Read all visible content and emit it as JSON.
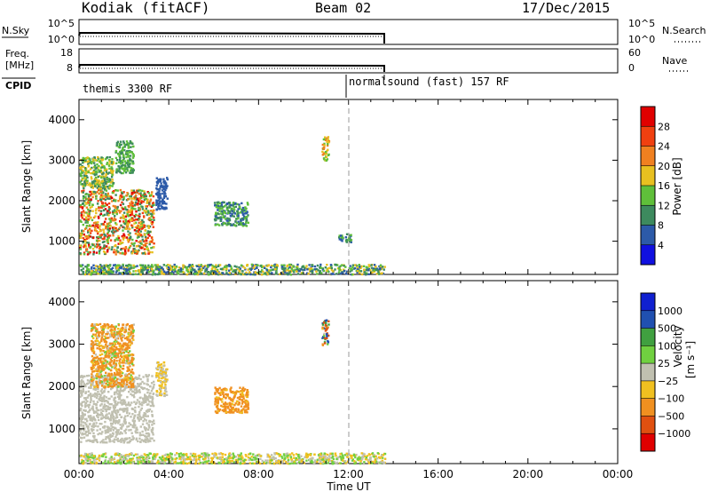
{
  "header": {
    "station": "Kodiak (fitACF)",
    "beam": "Beam 02",
    "date": "17/Dec/2015"
  },
  "upper_panels": {
    "nsky_label": "N.Sky",
    "nsky_ticks": [
      "10^5",
      "10^0"
    ],
    "nsearch_label": "N.Search",
    "nsearch_ticks": [
      "10^5",
      "10^0"
    ],
    "freq_label_1": "Freq.",
    "freq_label_2": "[MHz]",
    "freq_ticks": [
      "18",
      "8"
    ],
    "nave_label": "Nave",
    "nave_ticks": [
      "60",
      "0"
    ],
    "cpid_label": "CPID",
    "cpid_segments": [
      {
        "label": "themis 3300 RF",
        "start_hour": 0.0,
        "end_hour": 12.0
      },
      {
        "label": "normalsound (fast) 157 RF",
        "start_hour": 12.0,
        "end_hour": 13.6
      }
    ]
  },
  "power_colorbar": {
    "label": "Power [dB]",
    "ticks": [
      "28",
      "24",
      "20",
      "16",
      "12",
      "8",
      "4"
    ]
  },
  "velocity_colorbar": {
    "label_main": "Velocity",
    "label_units": "[m s⁻¹]",
    "ticks": [
      "1000",
      "500",
      "100",
      "25",
      "−25",
      "−100",
      "−500",
      "−1000"
    ]
  },
  "colors": {
    "power_scale": [
      "#1010e0",
      "#2c5aa8",
      "#3d8a5e",
      "#5fbf3a",
      "#e8c020",
      "#f08020",
      "#f04010",
      "#e00000"
    ],
    "velocity_scale": [
      "#1020d0",
      "#2050b0",
      "#40a040",
      "#70d040",
      "#c0c0b0",
      "#f0c020",
      "#f09020",
      "#e05010",
      "#e00000"
    ]
  },
  "chart_data": [
    {
      "type": "heatmap",
      "title": "Kodiak (fitACF) Beam 02 17/Dec/2015",
      "ylabel": "Slant Range [km]",
      "xlabel": "Time UT",
      "xlim": [
        0,
        24
      ],
      "ylim": [
        180,
        4500
      ],
      "yticks": [
        1000,
        2000,
        3000,
        4000
      ],
      "xticks": [
        "00:00",
        "04:00",
        "08:00",
        "12:00",
        "16:00",
        "20:00",
        "00:00"
      ],
      "colorbar_label": "Power [dB]",
      "colorbar_range": [
        0,
        32
      ],
      "scatter_regions": [
        {
          "hours": [
            0.0,
            3.3
          ],
          "range_km": [
            700,
            2300
          ],
          "power_db": [
            8,
            30
          ]
        },
        {
          "hours": [
            0.0,
            1.5
          ],
          "range_km": [
            2300,
            3100
          ],
          "power_db": [
            8,
            20
          ]
        },
        {
          "hours": [
            1.6,
            2.4
          ],
          "range_km": [
            2700,
            3500
          ],
          "power_db": [
            8,
            16
          ]
        },
        {
          "hours": [
            3.4,
            3.9
          ],
          "range_km": [
            1800,
            2600
          ],
          "power_db": [
            4,
            8
          ]
        },
        {
          "hours": [
            6.0,
            7.5
          ],
          "range_km": [
            1400,
            2000
          ],
          "power_db": [
            4,
            16
          ]
        },
        {
          "hours": [
            0.0,
            13.6
          ],
          "range_km": [
            200,
            450
          ],
          "power_db": [
            4,
            20
          ]
        },
        {
          "hours": [
            11.5,
            12.1
          ],
          "range_km": [
            1000,
            1200
          ],
          "power_db": [
            4,
            16
          ]
        },
        {
          "hours": [
            10.8,
            11.1
          ],
          "range_km": [
            3000,
            3600
          ],
          "power_db": [
            12,
            22
          ]
        }
      ]
    },
    {
      "type": "heatmap",
      "ylabel": "Slant Range [km]",
      "xlabel": "Time UT",
      "xlim": [
        0,
        24
      ],
      "ylim": [
        180,
        4500
      ],
      "yticks": [
        1000,
        2000,
        3000,
        4000
      ],
      "xticks": [
        "00:00",
        "04:00",
        "08:00",
        "12:00",
        "16:00",
        "20:00",
        "00:00"
      ],
      "colorbar_label": "Velocity [m s⁻¹]",
      "colorbar_ticks": [
        1000,
        500,
        100,
        25,
        -25,
        -100,
        -500,
        -1000
      ],
      "scatter_regions": [
        {
          "hours": [
            0.0,
            3.3
          ],
          "range_km": [
            700,
            2300
          ],
          "velocity": [
            -25,
            25
          ]
        },
        {
          "hours": [
            0.5,
            2.4
          ],
          "range_km": [
            2000,
            3500
          ],
          "velocity": [
            -500,
            100
          ]
        },
        {
          "hours": [
            3.4,
            3.9
          ],
          "range_km": [
            1800,
            2600
          ],
          "velocity": [
            -100,
            25
          ]
        },
        {
          "hours": [
            6.0,
            7.5
          ],
          "range_km": [
            1400,
            2000
          ],
          "velocity": [
            -500,
            -25
          ]
        },
        {
          "hours": [
            0.0,
            13.6
          ],
          "range_km": [
            200,
            450
          ],
          "velocity": [
            -100,
            100
          ]
        },
        {
          "hours": [
            10.8,
            11.1
          ],
          "range_km": [
            3000,
            3600
          ],
          "velocity": [
            -1000,
            1000
          ]
        }
      ]
    }
  ]
}
